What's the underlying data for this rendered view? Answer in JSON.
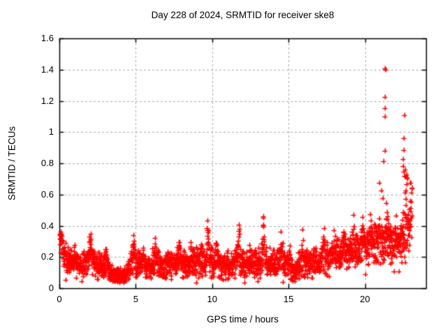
{
  "chart_data": {
    "type": "scatter",
    "title": "Day 228 of 2024, SRMTID for receiver ske8",
    "xlabel": "GPS time / hours",
    "ylabel": "SRMTID / TECUs",
    "xlim": [
      0,
      24
    ],
    "ylim": [
      0,
      1.6
    ],
    "xticks": {
      "values": [
        0,
        5,
        10,
        15,
        20
      ],
      "labels": [
        "0",
        "5",
        "10",
        "15",
        "20"
      ]
    },
    "yticks": {
      "values": [
        0,
        0.2,
        0.4,
        0.6,
        0.8,
        1.0,
        1.2,
        1.4,
        1.6
      ],
      "labels": [
        "0",
        "0.2",
        "0.4",
        "0.6",
        "0.8",
        "1",
        "1.2",
        "1.4",
        "1.6"
      ]
    },
    "grid": {
      "show": true,
      "style": "dashed",
      "color": "#a8a8a8"
    },
    "border_color": "#000000",
    "legend": "none",
    "marker": {
      "shape": "plus",
      "color": "#ff0000",
      "size": 7,
      "stroke_width": 1.6
    },
    "series_name": "SRMTID",
    "x_data_range": [
      0.03,
      23.08
    ],
    "envelope_nodes_x_mean_spread": [
      [
        0.0,
        0.26,
        0.08
      ],
      [
        0.35,
        0.21,
        0.07
      ],
      [
        0.9,
        0.16,
        0.05
      ],
      [
        1.5,
        0.15,
        0.05
      ],
      [
        2.0,
        0.19,
        0.07
      ],
      [
        2.5,
        0.15,
        0.06
      ],
      [
        3.0,
        0.15,
        0.06
      ],
      [
        3.4,
        0.1,
        0.04
      ],
      [
        3.8,
        0.08,
        0.035
      ],
      [
        4.3,
        0.09,
        0.04
      ],
      [
        4.8,
        0.16,
        0.07
      ],
      [
        5.2,
        0.16,
        0.06
      ],
      [
        5.7,
        0.14,
        0.05
      ],
      [
        6.3,
        0.17,
        0.07
      ],
      [
        6.8,
        0.14,
        0.05
      ],
      [
        7.3,
        0.16,
        0.06
      ],
      [
        7.8,
        0.17,
        0.06
      ],
      [
        8.3,
        0.15,
        0.06
      ],
      [
        8.9,
        0.17,
        0.07
      ],
      [
        9.7,
        0.19,
        0.08
      ],
      [
        10.2,
        0.17,
        0.07
      ],
      [
        10.7,
        0.14,
        0.05
      ],
      [
        11.2,
        0.15,
        0.06
      ],
      [
        11.75,
        0.19,
        0.08
      ],
      [
        12.2,
        0.15,
        0.06
      ],
      [
        12.7,
        0.16,
        0.06
      ],
      [
        13.3,
        0.19,
        0.08
      ],
      [
        13.9,
        0.16,
        0.06
      ],
      [
        14.5,
        0.18,
        0.08
      ],
      [
        15.0,
        0.15,
        0.06
      ],
      [
        15.3,
        0.1,
        0.05
      ],
      [
        15.9,
        0.17,
        0.07
      ],
      [
        16.4,
        0.16,
        0.06
      ],
      [
        17.0,
        0.17,
        0.06
      ],
      [
        17.5,
        0.2,
        0.07
      ],
      [
        18.1,
        0.21,
        0.07
      ],
      [
        18.7,
        0.23,
        0.07
      ],
      [
        19.3,
        0.25,
        0.08
      ],
      [
        19.9,
        0.27,
        0.08
      ],
      [
        20.5,
        0.28,
        0.09
      ],
      [
        21.1,
        0.3,
        0.09
      ],
      [
        21.6,
        0.3,
        0.09
      ],
      [
        22.1,
        0.28,
        0.08
      ],
      [
        22.5,
        0.32,
        0.1
      ],
      [
        22.8,
        0.36,
        0.12
      ],
      [
        23.08,
        0.44,
        0.14
      ]
    ],
    "burst_clusters_x_amp_width": [
      [
        0.1,
        0.12,
        0.08
      ],
      [
        1.0,
        0.08,
        0.06
      ],
      [
        2.05,
        0.12,
        0.09
      ],
      [
        3.1,
        0.1,
        0.07
      ],
      [
        4.85,
        0.17,
        0.08
      ],
      [
        5.5,
        0.11,
        0.07
      ],
      [
        6.3,
        0.15,
        0.07
      ],
      [
        7.1,
        0.09,
        0.06
      ],
      [
        7.85,
        0.13,
        0.08
      ],
      [
        8.6,
        0.11,
        0.06
      ],
      [
        9.7,
        0.2,
        0.09
      ],
      [
        10.25,
        0.13,
        0.06
      ],
      [
        11.0,
        0.08,
        0.05
      ],
      [
        11.75,
        0.2,
        0.08
      ],
      [
        12.45,
        0.11,
        0.05
      ],
      [
        13.35,
        0.2,
        0.08
      ],
      [
        14.5,
        0.16,
        0.07
      ],
      [
        15.05,
        0.1,
        0.05
      ],
      [
        15.9,
        0.14,
        0.07
      ],
      [
        16.6,
        0.09,
        0.05
      ],
      [
        17.3,
        0.16,
        0.07
      ],
      [
        18.0,
        0.12,
        0.06
      ],
      [
        18.65,
        0.12,
        0.06
      ],
      [
        19.25,
        0.13,
        0.06
      ],
      [
        19.85,
        0.18,
        0.07
      ],
      [
        20.35,
        0.13,
        0.06
      ],
      [
        20.9,
        0.18,
        0.07
      ],
      [
        21.45,
        0.15,
        0.07
      ],
      [
        22.0,
        0.1,
        0.06
      ],
      [
        22.7,
        0.3,
        0.13
      ],
      [
        23.02,
        0.22,
        0.06
      ]
    ],
    "outlier_points": [
      [
        20.94,
        0.676
      ],
      [
        21.07,
        0.625
      ],
      [
        21.15,
        0.575
      ],
      [
        21.23,
        0.815
      ],
      [
        21.29,
        0.881
      ],
      [
        21.3,
        1.1
      ],
      [
        21.29,
        1.154
      ],
      [
        21.29,
        1.223
      ],
      [
        21.29,
        1.408
      ],
      [
        21.34,
        1.4
      ],
      [
        21.38,
        0.545
      ],
      [
        22.49,
        0.826
      ],
      [
        22.55,
        0.885
      ],
      [
        22.55,
        0.962
      ],
      [
        22.6,
        1.107
      ],
      [
        22.5,
        0.78
      ],
      [
        22.55,
        0.745
      ],
      [
        22.6,
        0.72
      ],
      [
        22.65,
        0.76
      ],
      [
        22.7,
        0.73
      ],
      [
        22.75,
        0.7
      ]
    ],
    "generation": {
      "seed": 228,
      "count": 2500,
      "xstart": 0.03,
      "xend": 23.08,
      "xjitter": 0.02,
      "noise_mult": 1.6,
      "low_tail_p": 0.07,
      "floor": 0.02
    }
  }
}
